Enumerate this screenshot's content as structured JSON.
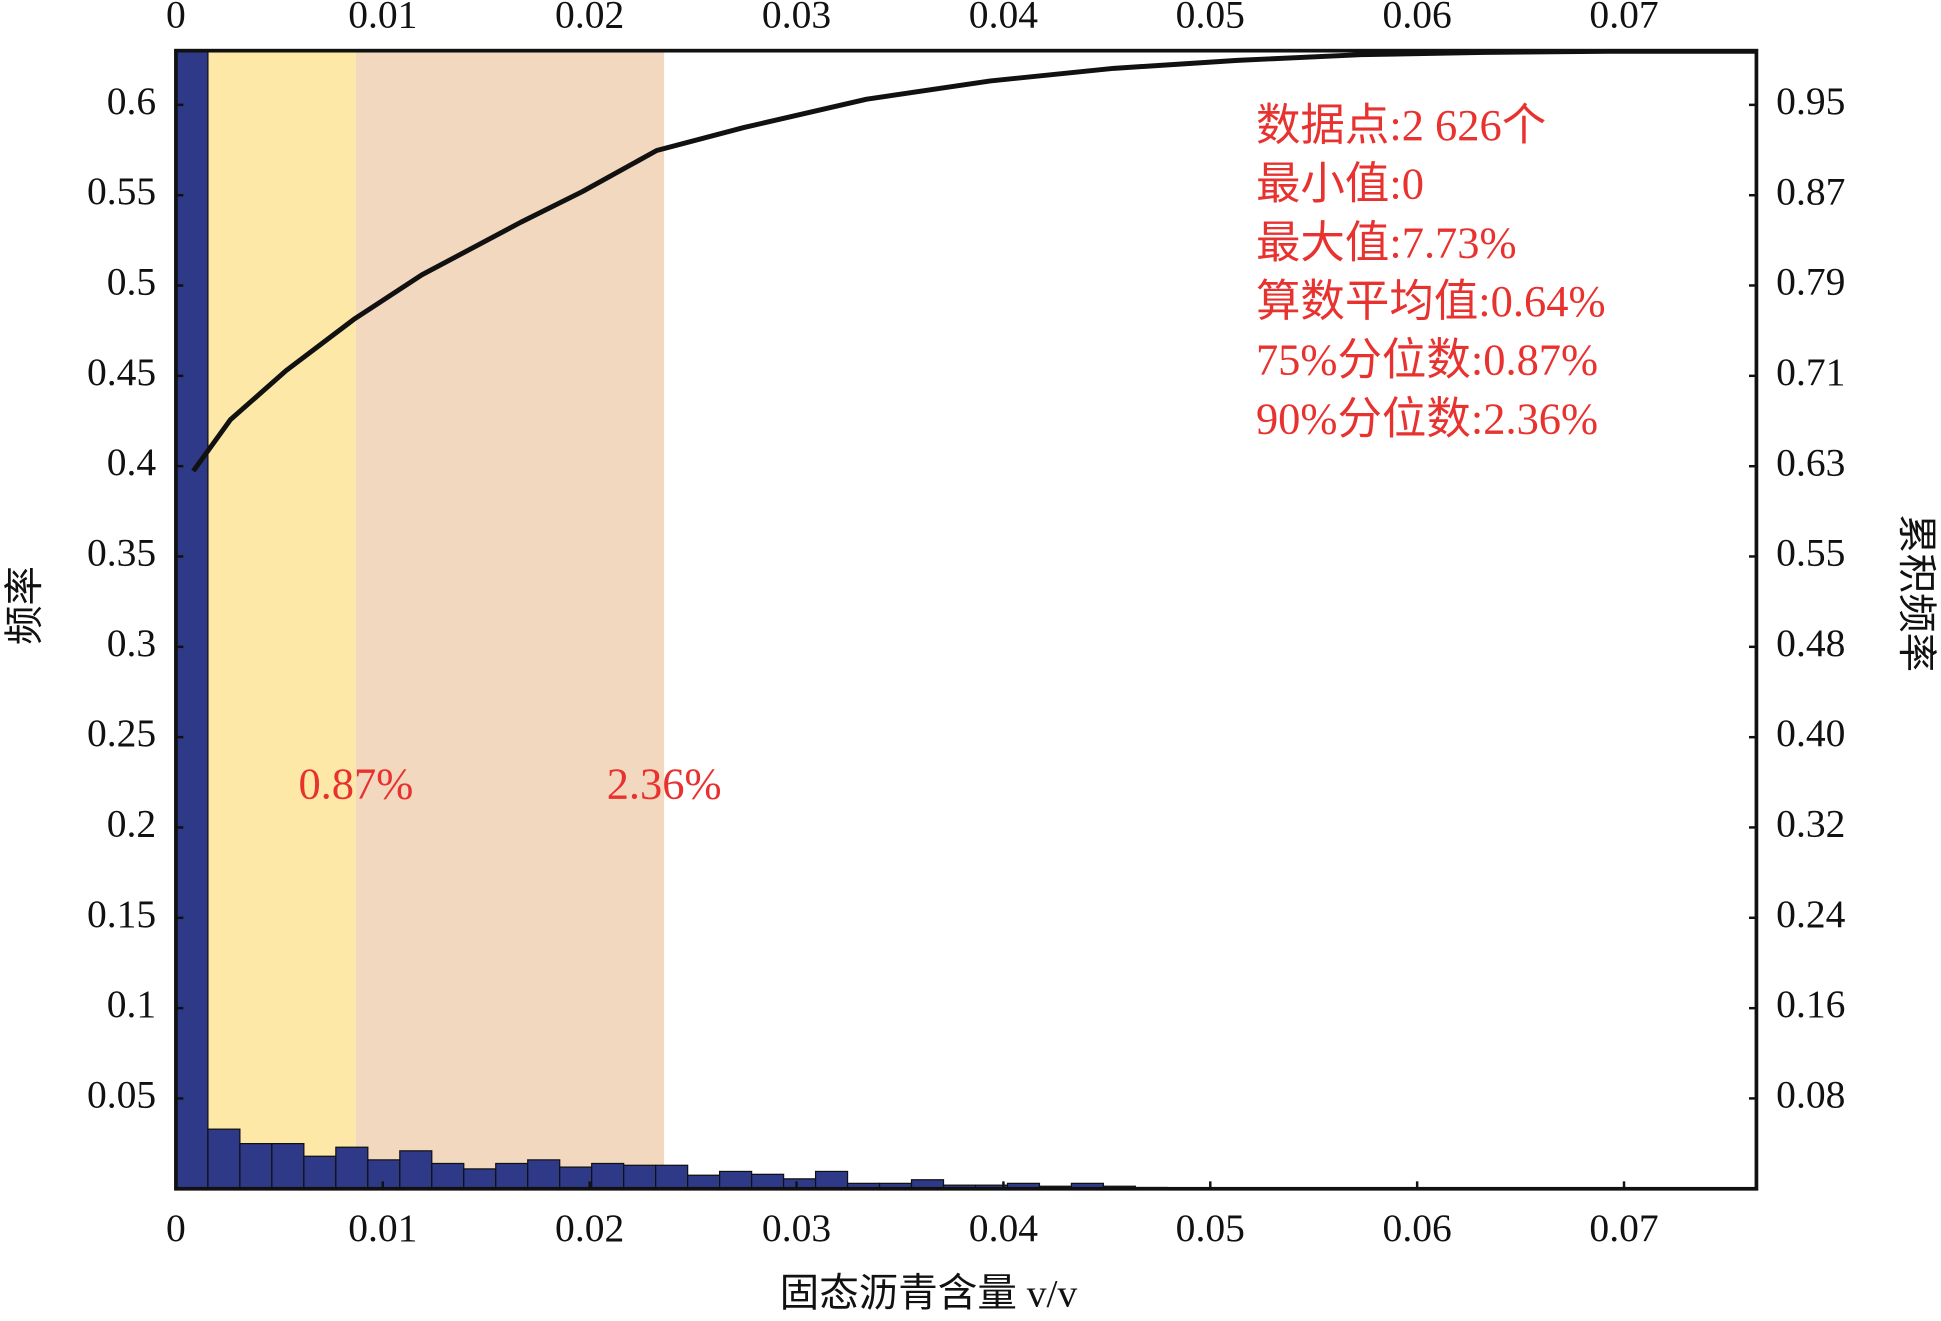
{
  "chart_data": {
    "type": "histogram",
    "xlabel": "固态沥青含量 v/v",
    "ylabel": "频率",
    "y2label": "累积频率",
    "xlim": [
      0,
      0.0764
    ],
    "xticks": [
      0,
      0.01,
      0.02,
      0.03,
      0.04,
      0.05,
      0.06,
      0.07
    ],
    "ylim": [
      0,
      0.63
    ],
    "yticks": [
      0.05,
      0.1,
      0.15,
      0.2,
      0.25,
      0.3,
      0.35,
      0.4,
      0.45,
      0.5,
      0.55,
      0.6
    ],
    "y2lim": [
      0,
      0.9975
    ],
    "y2ticks": [
      {
        "value": 0.0792,
        "label": "0.08"
      },
      {
        "value": 0.1583,
        "label": "0.16"
      },
      {
        "value": 0.2375,
        "label": "0.24"
      },
      {
        "value": 0.3167,
        "label": "0.32"
      },
      {
        "value": 0.3958,
        "label": "0.40"
      },
      {
        "value": 0.475,
        "label": "0.48"
      },
      {
        "value": 0.5542,
        "label": "0.55"
      },
      {
        "value": 0.6333,
        "label": "0.63"
      },
      {
        "value": 0.7125,
        "label": "0.71"
      },
      {
        "value": 0.7917,
        "label": "0.79"
      },
      {
        "value": 0.8708,
        "label": "0.87"
      },
      0.95
    ],
    "grid": false,
    "shaded_regions": [
      {
        "xlim": [
          0,
          0.0087
        ],
        "color": "#fde8a8",
        "label": "0.87%"
      },
      {
        "xlim": [
          0.0087,
          0.0236
        ],
        "color": "#f3d8c0",
        "label": "2.36%"
      }
    ],
    "annotations": [
      "数据点:2 626个",
      "最小值:0",
      "最大值:7.73%",
      "算数平均值:0.64%",
      "75%分位数:0.87%",
      "90%分位数:2.36%"
    ],
    "series": [
      {
        "type": "histogram",
        "color": "#2e3a87",
        "bins": [
          0,
          0.001546,
          0.003092,
          0.004638,
          0.006184,
          0.00773,
          0.009276,
          0.010822,
          0.012368,
          0.013914,
          0.01546,
          0.017006,
          0.018552,
          0.020098,
          0.021644,
          0.02319,
          0.024736,
          0.026282,
          0.027828,
          0.029374,
          0.03092,
          0.032466,
          0.034012,
          0.035558,
          0.037104,
          0.03865,
          0.040196,
          0.041742,
          0.043288,
          0.044834,
          0.04638,
          0.047926,
          0.049472,
          0.051018,
          0.052564,
          0.05411,
          0.055656,
          0.057202,
          0.058748,
          0.060294,
          0.06184,
          0.063386,
          0.064932,
          0.066478,
          0.068024,
          0.06957,
          0.071116,
          0.072662,
          0.074208,
          0.075754,
          0.0773
        ],
        "values": [
          0.63,
          0.033,
          0.025,
          0.025,
          0.018,
          0.023,
          0.016,
          0.021,
          0.014,
          0.011,
          0.014,
          0.016,
          0.012,
          0.014,
          0.013,
          0.013,
          0.0075,
          0.0096,
          0.008,
          0.0055,
          0.0096,
          0.003,
          0.003,
          0.005,
          0.002,
          0.002,
          0.003,
          0.0014,
          0.003,
          0.0014,
          0.0007,
          0.0003,
          0.0003,
          0.0002,
          0.0002,
          0.0001,
          0.0001,
          0.0001,
          0,
          0,
          0,
          0,
          0,
          0,
          0,
          0,
          0,
          0,
          0,
          0
        ]
      },
      {
        "type": "line",
        "color": "#111111",
        "axis": "y2",
        "x": [
          0.00084,
          0.00263,
          0.00532,
          0.0086,
          0.01189,
          0.01666,
          0.01965,
          0.02324,
          0.02742,
          0.03339,
          0.03937,
          0.04534,
          0.05131,
          0.05728,
          0.06325,
          0.06923,
          0.0764
        ],
        "values": [
          0.629,
          0.674,
          0.717,
          0.762,
          0.801,
          0.847,
          0.874,
          0.91,
          0.93,
          0.955,
          0.971,
          0.982,
          0.989,
          0.994,
          0.996,
          0.997,
          0.997
        ]
      }
    ]
  }
}
